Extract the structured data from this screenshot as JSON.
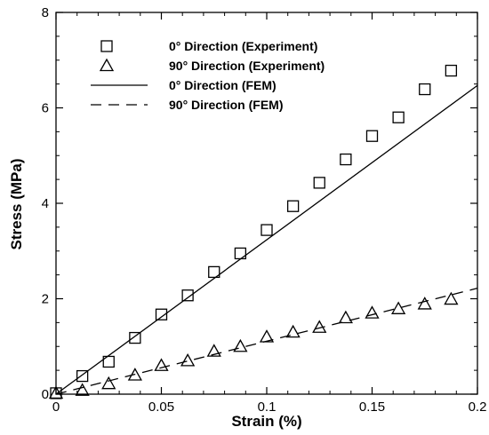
{
  "chart_data": {
    "type": "scatter",
    "xlabel": "Strain (%)",
    "ylabel": "Stress (MPa)",
    "xlim": [
      0,
      0.2
    ],
    "ylim": [
      0,
      8
    ],
    "x_ticks": [
      "0",
      "0.05",
      "0.1",
      "0.15",
      "0.2"
    ],
    "y_ticks": [
      "0",
      "2",
      "4",
      "6",
      "8"
    ],
    "legend_position": "top-left",
    "grid": false,
    "series": [
      {
        "name": "0° Direction (Experiment)",
        "kind": "marker",
        "marker": "square",
        "points": [
          [
            0.0,
            0.02
          ],
          [
            0.0125,
            0.38
          ],
          [
            0.025,
            0.68
          ],
          [
            0.0375,
            1.18
          ],
          [
            0.05,
            1.67
          ],
          [
            0.0625,
            2.07
          ],
          [
            0.075,
            2.56
          ],
          [
            0.0875,
            2.95
          ],
          [
            0.1,
            3.44
          ],
          [
            0.1125,
            3.94
          ],
          [
            0.125,
            4.43
          ],
          [
            0.1375,
            4.92
          ],
          [
            0.15,
            5.41
          ],
          [
            0.1625,
            5.8
          ],
          [
            0.175,
            6.39
          ],
          [
            0.1875,
            6.78
          ]
        ]
      },
      {
        "name": "90° Direction (Experiment)",
        "kind": "marker",
        "marker": "triangle",
        "points": [
          [
            0.0,
            0.02
          ],
          [
            0.0125,
            0.08
          ],
          [
            0.025,
            0.22
          ],
          [
            0.0375,
            0.4
          ],
          [
            0.05,
            0.6
          ],
          [
            0.0625,
            0.7
          ],
          [
            0.075,
            0.9
          ],
          [
            0.0875,
            1.0
          ],
          [
            0.1,
            1.2
          ],
          [
            0.1125,
            1.3
          ],
          [
            0.125,
            1.4
          ],
          [
            0.1375,
            1.6
          ],
          [
            0.15,
            1.7
          ],
          [
            0.1625,
            1.79
          ],
          [
            0.175,
            1.89
          ],
          [
            0.1875,
            1.99
          ]
        ]
      },
      {
        "name": "0° Direction (FEM)",
        "kind": "line",
        "dash": "solid",
        "points": [
          [
            0.0,
            0.0
          ],
          [
            0.2,
            6.47
          ]
        ]
      },
      {
        "name": "90° Direction (FEM)",
        "kind": "line",
        "dash": "dashed",
        "points": [
          [
            0.0,
            0.0
          ],
          [
            0.2,
            2.22
          ]
        ]
      }
    ]
  }
}
